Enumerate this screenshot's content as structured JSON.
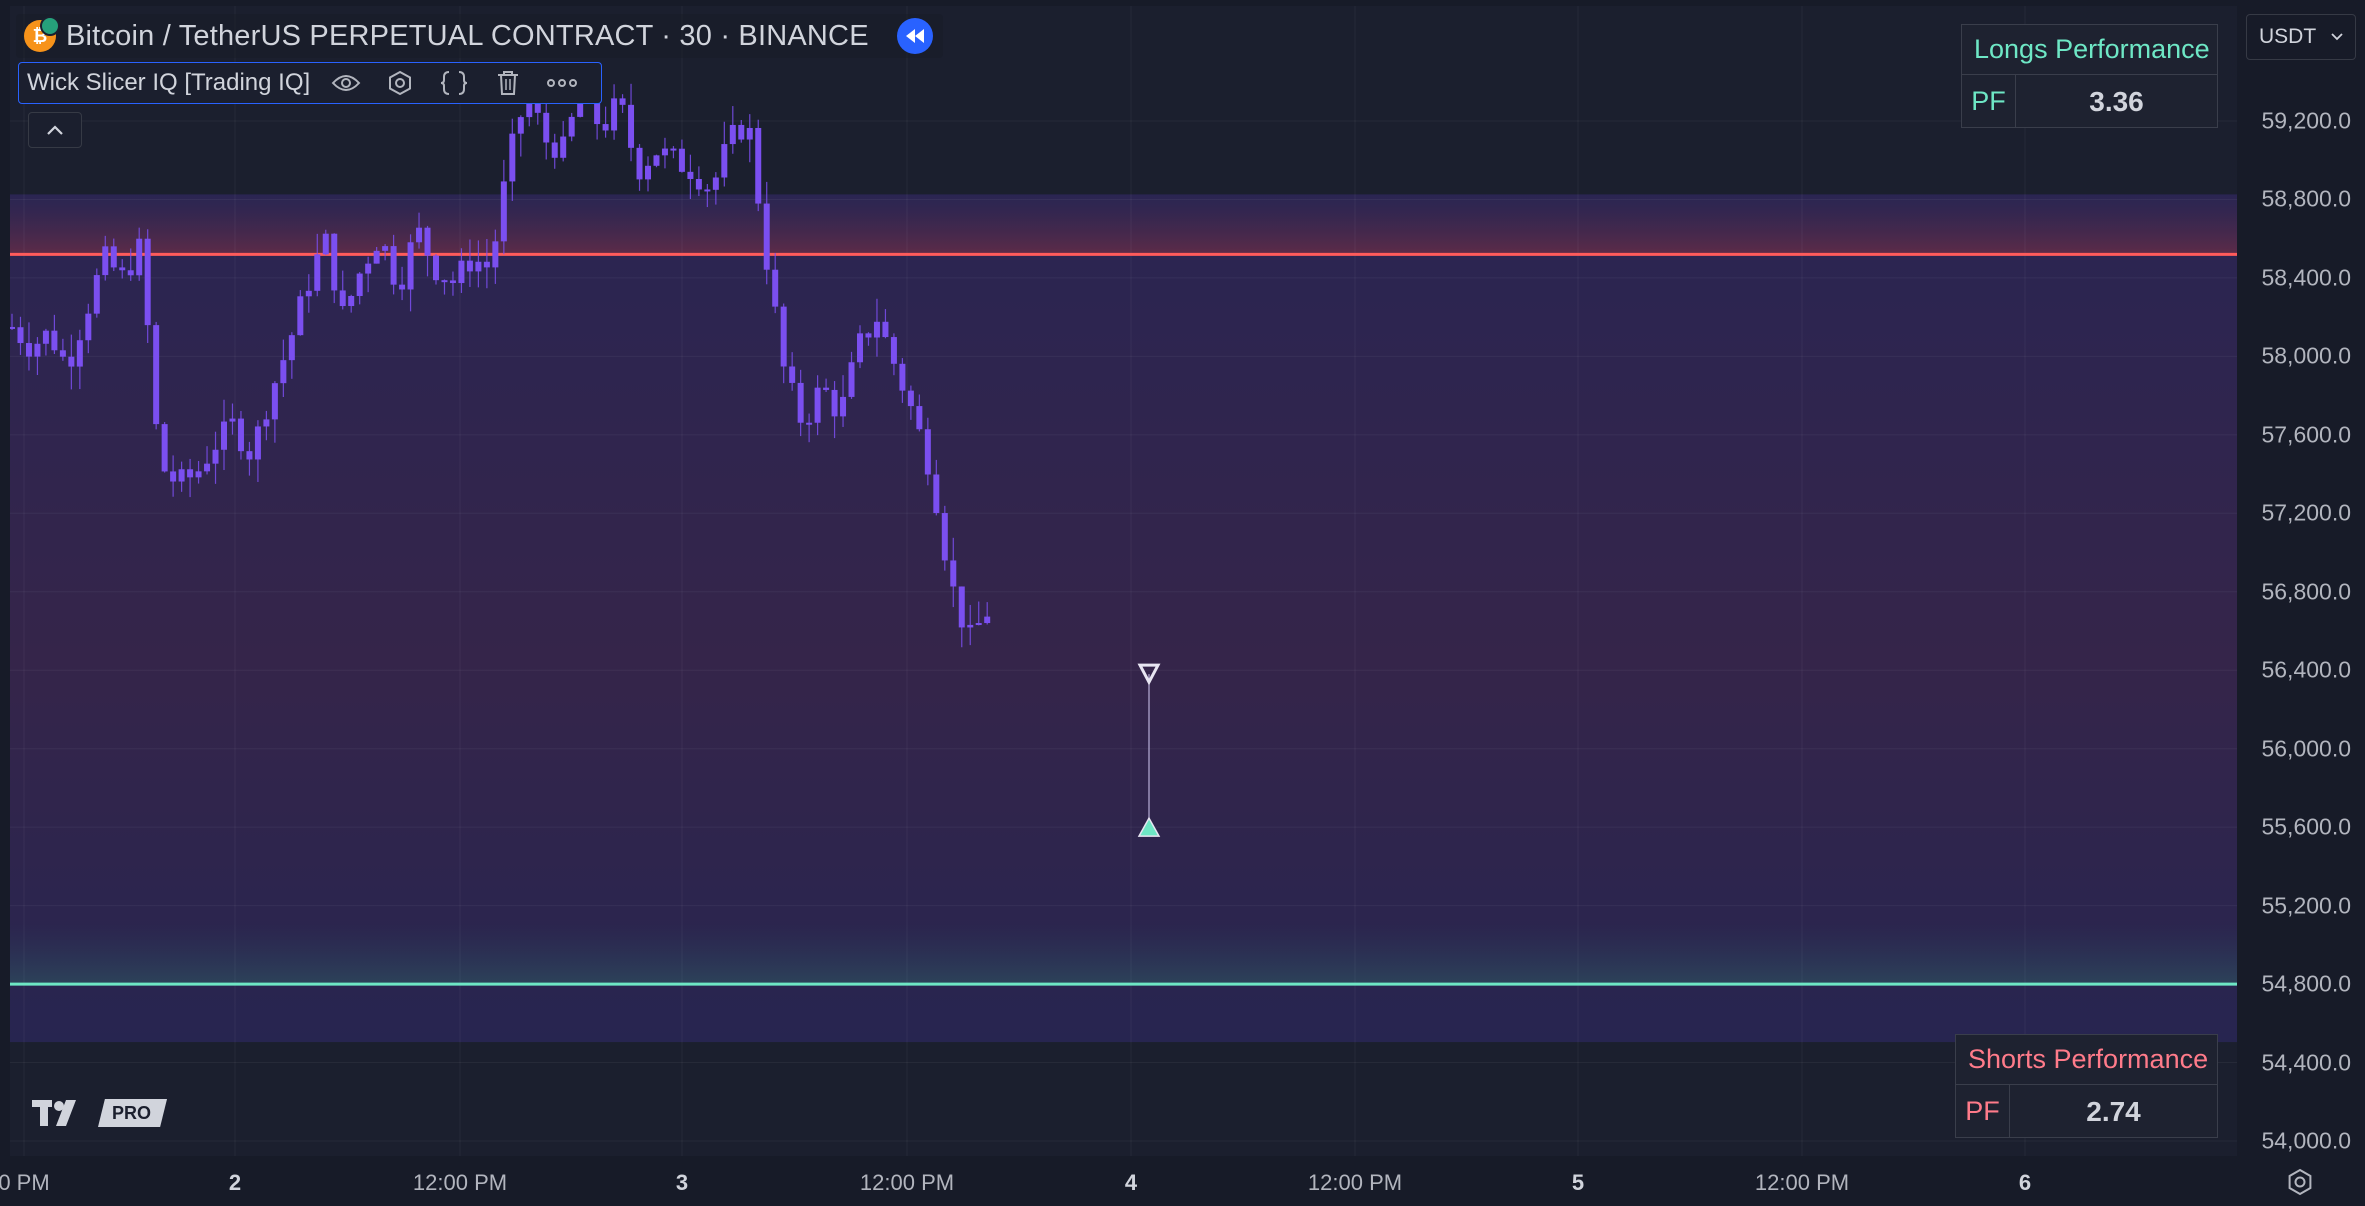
{
  "header": {
    "symbol_title": "Bitcoin / TetherUS PERPETUAL CONTRACT · 30 · BINANCE",
    "indicator_name": "Wick Slicer IQ [Trading IQ]"
  },
  "icons": {
    "coin": "bitcoin-logo-icon",
    "replay": "rewind-icon",
    "visibility": "eye-icon",
    "settings": "hexagon-gear-icon",
    "source": "curly-braces-icon",
    "delete": "trash-icon",
    "more": "ellipsis-icon",
    "collapse": "chevron-up-icon",
    "axis_settings": "gear-icon"
  },
  "coin_symbol": "₿",
  "longs": {
    "title": "Longs Performance",
    "key": "PF",
    "value": "3.36"
  },
  "shorts": {
    "title": "Shorts Performance",
    "key": "PF",
    "value": "2.74"
  },
  "currency": {
    "value": "USDT"
  },
  "price_axis": {
    "labels": [
      "59,200.0",
      "58,800.0",
      "58,400.0",
      "58,000.0",
      "57,600.0",
      "57,200.0",
      "56,800.0",
      "56,400.0",
      "56,000.0",
      "55,600.0",
      "55,200.0",
      "54,800.0",
      "54,400.0",
      "54,000.0"
    ]
  },
  "time_axis": {
    "labels": [
      {
        "text": "0 PM",
        "major": false
      },
      {
        "text": "2",
        "major": true
      },
      {
        "text": "12:00 PM",
        "major": false
      },
      {
        "text": "3",
        "major": true
      },
      {
        "text": "12:00 PM",
        "major": false
      },
      {
        "text": "4",
        "major": true
      },
      {
        "text": "12:00 PM",
        "major": false
      },
      {
        "text": "5",
        "major": true
      },
      {
        "text": "12:00 PM",
        "major": false
      },
      {
        "text": "6",
        "major": true
      }
    ]
  },
  "logo": {
    "badge": "PRO"
  },
  "colors": {
    "candle": "#7b4ff0",
    "resistance_line": "#ff5b5b",
    "support_line": "#6ee7c5",
    "longs_accent": "#6ee7c5",
    "shorts_accent": "#ff7b8a"
  },
  "chart_data": {
    "type": "candlestick",
    "symbol": "BTCUSDT.P",
    "interval": "30",
    "ylim": [
      54000,
      59200
    ],
    "levels": {
      "resistance": 58520,
      "support": 54800
    },
    "signals": [
      {
        "type": "short",
        "price": 56380,
        "marker": "down-triangle-outline"
      },
      {
        "type": "long",
        "price": 55600,
        "marker": "up-triangle-filled"
      }
    ],
    "close_path": [
      58150,
      58050,
      58120,
      57950,
      58220,
      58500,
      58400,
      58560,
      57450,
      57350,
      57400,
      57550,
      57650,
      57500,
      57800,
      58050,
      58350,
      58600,
      58200,
      58450,
      58620,
      58350,
      58650,
      58450,
      58380,
      58500,
      58450,
      59000,
      59350,
      59100,
      59050,
      59400,
      59150,
      59300,
      58950,
      59050,
      59000,
      58950,
      58850,
      59100,
      59200,
      58500,
      57900,
      57650,
      57850,
      57700,
      58050,
      58200,
      57950,
      57700,
      57400,
      56850,
      56550,
      56700
    ]
  }
}
